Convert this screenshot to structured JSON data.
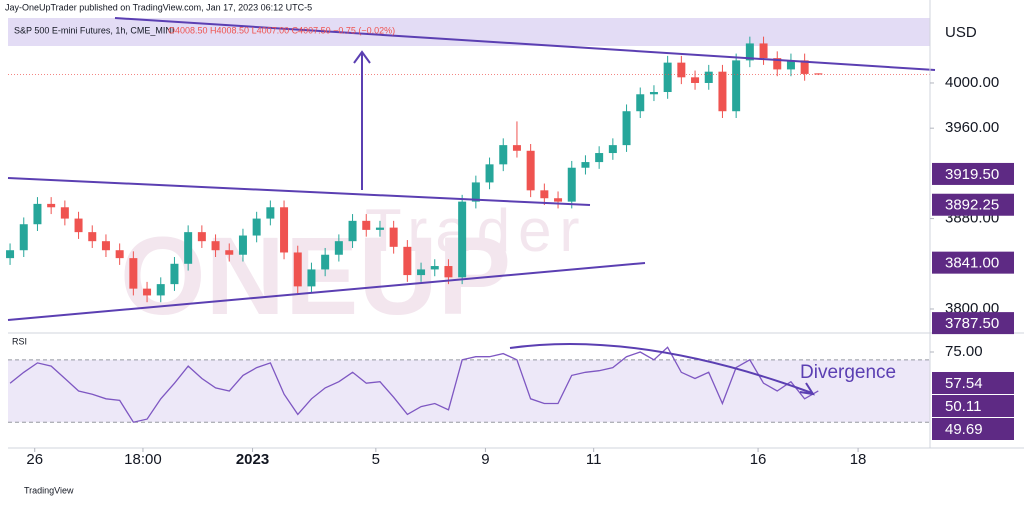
{
  "header": {
    "publisher": "Jay-OneUpTrader published on TradingView.com, Jan 17, 2023 06:12 UTC-5",
    "footer": "TradingView"
  },
  "watermark": {
    "logo": "ONEUP",
    "sub": "Trader"
  },
  "chart_data": [
    {
      "type": "candlestick",
      "title": "S&P 500 E-mini Futures, 1h, CME_MINI",
      "legend_values": "O4008.50 H4008.50 L4007.00 C4007.50 −0.75 (−0.02%)",
      "currency": "USD",
      "up_color": "#26a69a",
      "down_color": "#ef5350",
      "open": [
        3845,
        3852,
        3875,
        3893,
        3890,
        3880,
        3868,
        3860,
        3852,
        3845,
        3818,
        3812,
        3822,
        3840,
        3868,
        3860,
        3852,
        3848,
        3865,
        3880,
        3890,
        3850,
        3820,
        3835,
        3848,
        3860,
        3878,
        3870,
        3872,
        3855,
        3830,
        3835,
        3838,
        3828,
        3895,
        3912,
        3928,
        3945,
        3940,
        3905,
        3898,
        3895,
        3925,
        3930,
        3938,
        3945,
        3975,
        3990,
        3992,
        4018,
        4005,
        4000,
        4010,
        3975,
        4020,
        4035,
        4022,
        4012,
        4020,
        4008.5
      ],
      "high": [
        3858,
        3881,
        3899,
        3899,
        3896,
        3886,
        3874,
        3866,
        3858,
        3851,
        3824,
        3828,
        3846,
        3874,
        3874,
        3866,
        3858,
        3871,
        3886,
        3896,
        3896,
        3856,
        3841,
        3854,
        3866,
        3884,
        3884,
        3878,
        3878,
        3861,
        3841,
        3844,
        3844,
        3901,
        3918,
        3934,
        3951,
        3966,
        3946,
        3911,
        3904,
        3931,
        3936,
        3944,
        3951,
        3981,
        3996,
        3998,
        4024,
        4024,
        4011,
        4016,
        4016,
        4026,
        4041,
        4041,
        4028,
        4026,
        4026,
        4008.5
      ],
      "low": [
        3839,
        3846,
        3869,
        3884,
        3874,
        3862,
        3854,
        3846,
        3839,
        3812,
        3806,
        3806,
        3816,
        3834,
        3854,
        3846,
        3842,
        3842,
        3859,
        3874,
        3844,
        3814,
        3814,
        3829,
        3842,
        3854,
        3864,
        3864,
        3849,
        3824,
        3824,
        3829,
        3822,
        3822,
        3889,
        3906,
        3922,
        3934,
        3899,
        3892,
        3889,
        3889,
        3919,
        3924,
        3932,
        3939,
        3969,
        3984,
        3986,
        3999,
        3994,
        3994,
        3969,
        3969,
        4014,
        4016,
        4006,
        4006,
        4002,
        4007
      ],
      "close": [
        3852,
        3875,
        3893,
        3890,
        3880,
        3868,
        3860,
        3852,
        3845,
        3818,
        3812,
        3822,
        3840,
        3868,
        3860,
        3852,
        3848,
        3865,
        3880,
        3890,
        3850,
        3820,
        3835,
        3848,
        3860,
        3878,
        3870,
        3872,
        3855,
        3830,
        3835,
        3838,
        3828,
        3895,
        3912,
        3928,
        3945,
        3940,
        3905,
        3898,
        3895,
        3925,
        3930,
        3938,
        3945,
        3975,
        3990,
        3992,
        4018,
        4005,
        4000,
        4010,
        3975,
        4020,
        4035,
        4022,
        4012,
        4020,
        4008,
        4007.5
      ],
      "xlim": [
        -0.15,
        67.15
      ],
      "xticks": [
        {
          "value": 1.8,
          "label": "26"
        },
        {
          "value": 9.7,
          "label": "18:00"
        },
        {
          "value": 17.7,
          "label": "2023"
        },
        {
          "value": 26.7,
          "label": "5"
        },
        {
          "value": 34.7,
          "label": "9"
        },
        {
          "value": 42.6,
          "label": "11"
        },
        {
          "value": 54.6,
          "label": "16"
        },
        {
          "value": 61.9,
          "label": "18"
        }
      ],
      "ylim": [
        3781.4,
        4057.5
      ],
      "yticks": [
        {
          "value": 3800,
          "label": "3800.00"
        },
        {
          "value": 3880,
          "label": "3880.00"
        },
        {
          "value": 3960,
          "label": "3960.00"
        },
        {
          "value": 4000,
          "label": "4000.00"
        }
      ],
      "price_markers": [
        {
          "value": 3919.5,
          "label": "3919.50"
        },
        {
          "value": 3892.25,
          "label": "3892.25"
        },
        {
          "value": 3841,
          "label": "3841.00"
        },
        {
          "value": 3787.5,
          "label": "3787.50"
        }
      ],
      "marker_color": "#5e2a84"
    },
    {
      "type": "line",
      "title": "RSI",
      "annotation": "Divergence",
      "color": "#7e57c2",
      "values": [
        55,
        62,
        68,
        66,
        58,
        50,
        48,
        45,
        44,
        30,
        32,
        45,
        55,
        66,
        58,
        52,
        50,
        60,
        65,
        68,
        48,
        35,
        45,
        52,
        56,
        62,
        55,
        56,
        46,
        35,
        40,
        42,
        38,
        70,
        72,
        72,
        74,
        70,
        45,
        42,
        42,
        60,
        62,
        63,
        65,
        72,
        75,
        70,
        78,
        62,
        58,
        62,
        42,
        65,
        70,
        55,
        50,
        56,
        45,
        50.11
      ],
      "ylim": [
        13.5,
        85.9
      ],
      "yticks": [
        {
          "value": 75,
          "label": "75.00"
        }
      ],
      "band": [
        70,
        30
      ],
      "value_markers": [
        {
          "value": 57.54,
          "label": "57.54"
        },
        {
          "value": 50.11,
          "label": "50.11"
        },
        {
          "value": 49.69,
          "label": "49.69"
        }
      ]
    }
  ]
}
